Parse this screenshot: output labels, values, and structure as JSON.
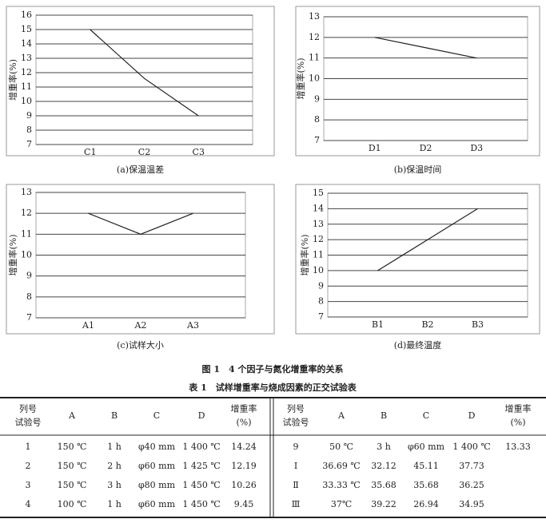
{
  "chart_data": [
    {
      "type": "line",
      "ylabel": "增重率(%)",
      "caption": "(a)保温温差",
      "categories": [
        "C1",
        "C2",
        "C3"
      ],
      "values": [
        15,
        11.6,
        9
      ],
      "ylim": [
        7,
        16
      ],
      "yticks": [
        7,
        8,
        9,
        10,
        11,
        12,
        13,
        14,
        15,
        16
      ],
      "grid": true,
      "color": "#222222"
    },
    {
      "type": "line",
      "ylabel": "增重率(%)",
      "caption": "(b)保温时间",
      "categories": [
        "D1",
        "D2",
        "D3"
      ],
      "values": [
        12,
        11.5,
        11
      ],
      "ylim": [
        7,
        13
      ],
      "yticks": [
        7,
        8,
        9,
        10,
        11,
        12,
        13
      ],
      "grid": true,
      "color": "#222222"
    },
    {
      "type": "line",
      "ylabel": "增重率(%)",
      "caption": "(c)试样大小",
      "categories": [
        "A1",
        "A2",
        "A3"
      ],
      "values": [
        12,
        11,
        12
      ],
      "ylim": [
        7,
        13
      ],
      "yticks": [
        7,
        8,
        9,
        10,
        11,
        12,
        13
      ],
      "grid": true,
      "color": "#222222"
    },
    {
      "type": "line",
      "ylabel": "增重率(%)",
      "caption": "(d)最终温度",
      "categories": [
        "B1",
        "B2",
        "B3"
      ],
      "values": [
        10,
        12,
        14
      ],
      "ylim": [
        7,
        15
      ],
      "yticks": [
        7,
        8,
        9,
        10,
        11,
        12,
        13,
        14,
        15
      ],
      "grid": true,
      "color": "#222222"
    }
  ],
  "figure_caption": "图 1　4 个因子与氮化增重率的关系",
  "table": {
    "title": "表 1　试样增重率与烧成因素的正交试验表",
    "header": [
      [
        "列号",
        "试验号"
      ],
      [
        "A"
      ],
      [
        "B"
      ],
      [
        "C"
      ],
      [
        "D"
      ],
      [
        "增重率",
        "(%)"
      ],
      [
        "列号",
        "试验号"
      ],
      [
        "A"
      ],
      [
        "B"
      ],
      [
        "C"
      ],
      [
        "D"
      ],
      [
        "增重率",
        "(%)"
      ]
    ],
    "rows": [
      {
        "left": [
          "1",
          "150 ℃",
          "1 h",
          "φ40 mm",
          "1 400 ℃",
          "14.24"
        ],
        "right": [
          "9",
          "50 ℃",
          "3 h",
          "φ60 mm",
          "1 400 ℃",
          "13.33"
        ]
      },
      {
        "left": [
          "2",
          "150 ℃",
          "2 h",
          "φ60 mm",
          "1 425 ℃",
          "12.19"
        ],
        "right": [
          "Ⅰ",
          "36.69 ℃",
          "32.12",
          "45.11",
          "37.73"
        ]
      },
      {
        "left": [
          "3",
          "150 ℃",
          "3 h",
          "φ80 mm",
          "1 450 ℃",
          "10.26"
        ],
        "right": [
          "Ⅱ",
          "33.33 ℃",
          "35.68",
          "35.68",
          "36.25"
        ]
      },
      {
        "left": [
          "4",
          "100 ℃",
          "1 h",
          "φ60 mm",
          "1 450 ℃",
          "9.45"
        ],
        "right": [
          "Ⅲ",
          "37℃",
          "39.22",
          "26.94",
          "34.95"
        ]
      }
    ]
  }
}
